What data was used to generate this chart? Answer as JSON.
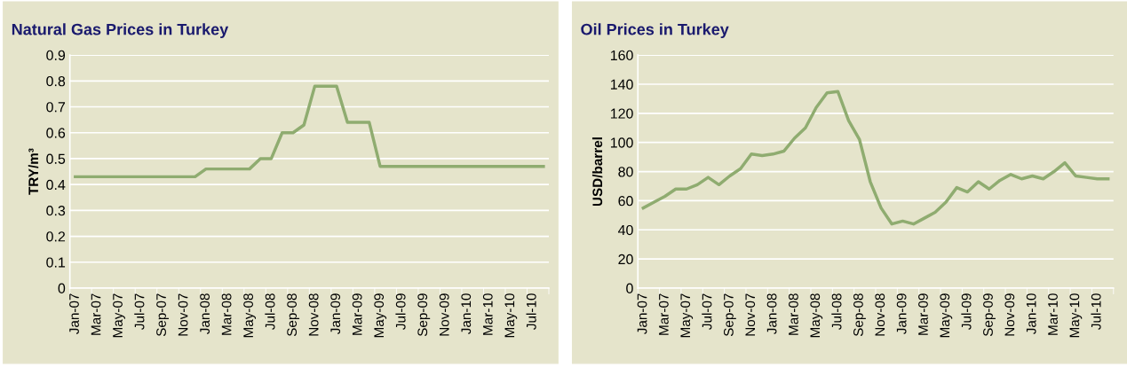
{
  "chart_data": [
    {
      "type": "line",
      "title": "Natural Gas Prices in Turkey",
      "ylabel": "TRY/m³",
      "categories": [
        "Jan-07",
        null,
        "Mar-07",
        null,
        "May-07",
        null,
        "Jul-07",
        null,
        "Sep-07",
        null,
        "Nov-07",
        null,
        "Jan-08",
        null,
        "Mar-08",
        null,
        "May-08",
        null,
        "Jul-08",
        null,
        "Sep-08",
        null,
        "Nov-08",
        null,
        "Jan-09",
        null,
        "Mar-09",
        null,
        "May-09",
        null,
        "Jul-09",
        null,
        "Sep-09",
        null,
        "Nov-09",
        null,
        "Jan-10",
        null,
        "Mar-10",
        null,
        "May-10",
        null,
        "Jul-10",
        null
      ],
      "series": [
        {
          "color": "#8fac70",
          "values": [
            0.43,
            0.43,
            0.43,
            0.43,
            0.43,
            0.43,
            0.43,
            0.43,
            0.43,
            0.43,
            0.43,
            0.43,
            0.46,
            0.46,
            0.46,
            0.46,
            0.46,
            0.5,
            0.5,
            0.6,
            0.6,
            0.63,
            0.78,
            0.78,
            0.78,
            0.64,
            0.64,
            0.64,
            0.47,
            0.47,
            0.47,
            0.47,
            0.47,
            0.47,
            0.47,
            0.47,
            0.47,
            0.47,
            0.47,
            0.47,
            0.47,
            0.47,
            0.47,
            0.47
          ]
        }
      ],
      "ylim": [
        0,
        0.9
      ],
      "yticks": [
        0,
        0.1,
        0.2,
        0.3,
        0.4,
        0.5,
        0.6,
        0.7,
        0.8,
        0.9
      ],
      "grid": "y",
      "marker": "none",
      "line_style": "solid"
    },
    {
      "type": "line",
      "title": "Oil Prices in Turkey",
      "ylabel": "USD/barrel",
      "categories": [
        "Jan-07",
        null,
        "Mar-07",
        null,
        "May-07",
        null,
        "Jul-07",
        null,
        "Sep-07",
        null,
        "Nov-07",
        null,
        "Jan-08",
        null,
        "Mar-08",
        null,
        "May-08",
        null,
        "Jul-08",
        null,
        "Sep-08",
        null,
        "Nov-08",
        null,
        "Jan-09",
        null,
        "Mar-09",
        null,
        "May-09",
        null,
        "Jul-09",
        null,
        "Sep-09",
        null,
        "Nov-09",
        null,
        "Jan-10",
        null,
        "Mar-10",
        null,
        "May-10",
        null,
        "Jul-10",
        null
      ],
      "series": [
        {
          "color": "#8fac70",
          "values": [
            55,
            59,
            63,
            68,
            68,
            71,
            76,
            71,
            77,
            82,
            92,
            91,
            92,
            94,
            103,
            110,
            124,
            134,
            135,
            115,
            102,
            73,
            55,
            44,
            46,
            44,
            48,
            52,
            59,
            69,
            66,
            73,
            68,
            74,
            78,
            75,
            77,
            75,
            80,
            86,
            77,
            76,
            75,
            75
          ]
        }
      ],
      "ylim": [
        0,
        160
      ],
      "yticks": [
        0,
        20,
        40,
        60,
        80,
        100,
        120,
        140,
        160
      ],
      "grid": "y",
      "marker": "none",
      "line_style": "solid"
    }
  ]
}
